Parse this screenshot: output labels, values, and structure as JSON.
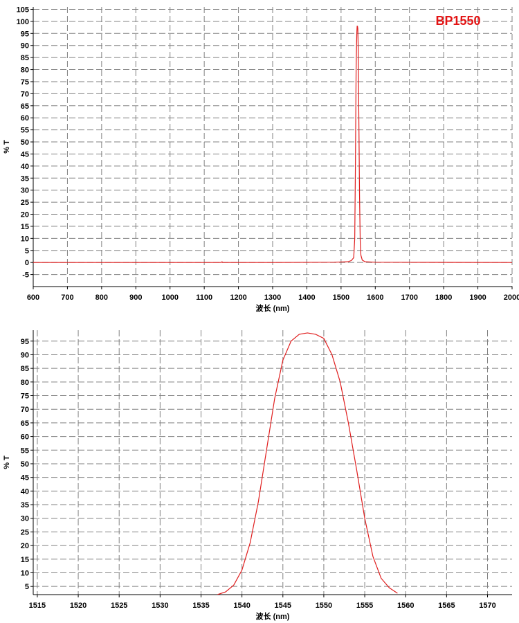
{
  "chart_data": [
    {
      "type": "line",
      "title": "BP1550",
      "xlabel": "波长 (nm)",
      "ylabel": "% T",
      "xlim": [
        600,
        2000
      ],
      "ylim": [
        -10,
        106
      ],
      "xticks": [
        600,
        700,
        800,
        900,
        1000,
        1100,
        1200,
        1300,
        1400,
        1500,
        1600,
        1700,
        1800,
        1900,
        2000
      ],
      "yticks": [
        -5,
        0,
        5,
        10,
        15,
        20,
        25,
        30,
        35,
        40,
        45,
        50,
        55,
        60,
        65,
        70,
        75,
        80,
        85,
        90,
        95,
        100,
        105
      ],
      "grid": true,
      "series": [
        {
          "color": "#e01e1e",
          "x": [
            600,
            1000,
            1150,
            1152,
            1154,
            1300,
            1480,
            1520,
            1530,
            1537,
            1540,
            1542,
            1544,
            1546,
            1547,
            1548,
            1549,
            1550,
            1552,
            1554,
            1556,
            1558,
            1562,
            1570,
            1600,
            2000
          ],
          "y": [
            0,
            0,
            0,
            0.3,
            0,
            0,
            0.1,
            0.3,
            0.8,
            2,
            10,
            40,
            80,
            95,
            98,
            98,
            97,
            90,
            60,
            28,
            9,
            3,
            1,
            0.3,
            0.1,
            0
          ]
        }
      ]
    },
    {
      "type": "line",
      "title": "",
      "xlabel": "波长 (nm)",
      "ylabel": "% T",
      "xlim": [
        1514.5,
        1573
      ],
      "ylim": [
        2,
        99
      ],
      "xticks": [
        1515,
        1520,
        1525,
        1530,
        1535,
        1540,
        1545,
        1550,
        1555,
        1560,
        1565,
        1570
      ],
      "yticks": [
        5,
        10,
        15,
        20,
        25,
        30,
        35,
        40,
        45,
        50,
        55,
        60,
        65,
        70,
        75,
        80,
        85,
        90,
        95
      ],
      "grid": true,
      "series": [
        {
          "color": "#e01e1e",
          "x": [
            1537.0,
            1538.0,
            1539.0,
            1540.0,
            1541.0,
            1542.0,
            1543.0,
            1544.0,
            1545.0,
            1546.0,
            1547.0,
            1548.0,
            1549.0,
            1550.0,
            1551.0,
            1552.0,
            1553.0,
            1554.0,
            1555.0,
            1556.0,
            1557.0,
            1558.0,
            1559.0
          ],
          "y": [
            2,
            3,
            5.5,
            11,
            21,
            36,
            55,
            74,
            88,
            95,
            97.5,
            98,
            97.5,
            96,
            90,
            80,
            65,
            48,
            30,
            16,
            8,
            4.5,
            2.5
          ]
        }
      ]
    }
  ]
}
